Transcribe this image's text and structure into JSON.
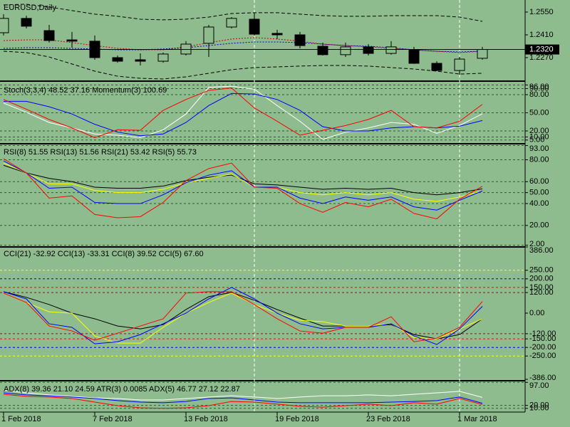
{
  "chart_data": [
    {
      "type": "candlestick",
      "title": "EURUSD,Daily",
      "categories": [
        "1 Feb 2018",
        null,
        null,
        null,
        "7 Feb 2018",
        null,
        null,
        null,
        "13 Feb 2018",
        null,
        null,
        null,
        "19 Feb 2018",
        null,
        null,
        null,
        "23 Feb 2018",
        null,
        null,
        null,
        "1 Mar 2018",
        null
      ],
      "open": [
        1.2423,
        1.2511,
        1.2436,
        1.2379,
        1.2371,
        1.227,
        1.2257,
        1.2248,
        1.2292,
        1.2358,
        1.2458,
        1.2506,
        1.2419,
        1.241,
        1.234,
        1.2288,
        1.2336,
        1.2296,
        1.2318,
        1.2235,
        1.2191,
        1.2266
      ],
      "high": [
        1.2537,
        1.2528,
        1.2471,
        1.2428,
        1.2406,
        1.2283,
        1.2296,
        1.2301,
        1.2371,
        1.2471,
        1.2519,
        1.2546,
        1.2441,
        1.2428,
        1.2362,
        1.2362,
        1.2353,
        1.2371,
        1.2336,
        1.2248,
        1.2274,
        1.2336
      ],
      "low": [
        1.2406,
        1.2449,
        1.2362,
        1.2331,
        1.2257,
        1.2239,
        1.2222,
        1.2239,
        1.2283,
        1.2274,
        1.2449,
        1.2406,
        1.2384,
        1.2327,
        1.2283,
        1.2274,
        1.2283,
        1.2288,
        1.2231,
        1.2187,
        1.2165,
        1.2257
      ],
      "close": [
        1.2511,
        1.2463,
        1.2375,
        1.2371,
        1.227,
        1.2248,
        1.2248,
        1.2292,
        1.2353,
        1.2458,
        1.2511,
        1.2414,
        1.241,
        1.2344,
        1.2288,
        1.2336,
        1.2296,
        1.2336,
        1.2235,
        1.2191,
        1.2261,
        1.232
      ],
      "up_color": "#8fbc8f",
      "down_color": "#000000",
      "wick_color": "#000000",
      "series": [
        {
          "color": "#000000",
          "style": "dashed",
          "values": [
            1.2594,
            1.2598,
            1.2581,
            1.2559,
            1.2537,
            1.2524,
            1.2506,
            1.2502,
            1.2506,
            1.2519,
            1.2541,
            1.2546,
            1.2546,
            1.2537,
            1.2528,
            1.2524,
            1.2524,
            1.2528,
            1.2528,
            1.2528,
            1.2519,
            1.2493
          ]
        },
        {
          "color": "#000000",
          "style": "dashed",
          "values": [
            1.2309,
            1.2301,
            1.2274,
            1.2231,
            1.2187,
            1.2156,
            1.2143,
            1.2139,
            1.2152,
            1.2174,
            1.2196,
            1.2209,
            1.2213,
            1.2218,
            1.2222,
            1.2222,
            1.2218,
            1.2209,
            1.22,
            1.2187,
            1.2169,
            1.2174
          ]
        },
        {
          "color": "#cc0000",
          "style": "dotted",
          "values": [
            1.2375,
            1.2379,
            1.2379,
            1.2362,
            1.2344,
            1.2327,
            1.2318,
            1.2318,
            1.2336,
            1.2362,
            1.2384,
            1.2393,
            1.2384,
            1.2371,
            1.2353,
            1.2344,
            1.2336,
            1.2327,
            1.2318,
            1.2309,
            1.2301,
            1.2309
          ]
        },
        {
          "color": "#0000cc",
          "style": "dotted",
          "values": [
            1.2327,
            1.2331,
            1.2331,
            1.2327,
            1.2323,
            1.2318,
            1.2318,
            1.2323,
            1.2331,
            1.2344,
            1.2358,
            1.2366,
            1.2366,
            1.2362,
            1.2353,
            1.2344,
            1.234,
            1.2331,
            1.2318,
            1.2309,
            1.2305,
            1.2309
          ]
        }
      ],
      "ylim": [
        1.213,
        1.2624
      ],
      "yticks": [
        {
          "value": 1.255,
          "label": "1.2550"
        },
        {
          "value": 1.241,
          "label": "1.2410"
        },
        {
          "value": 1.227,
          "label": "1.2270"
        }
      ],
      "last_price": {
        "value": 1.232,
        "label": "1.2320"
      }
    },
    {
      "type": "line",
      "title": "Stoch(3,3,4) 48.52 37.16 Momentum(3) 100.69",
      "ylim": [
        0,
        100
      ],
      "yticks": [
        {
          "value": 96,
          "label": "96.00"
        },
        {
          "value": 90,
          "label": "90.00"
        },
        {
          "value": 80,
          "label": "80.00"
        },
        {
          "value": 50,
          "label": "50.00"
        },
        {
          "value": 20,
          "label": "20.00"
        },
        {
          "value": 10,
          "label": "10.00"
        },
        {
          "value": 5,
          "label": "5.00"
        }
      ],
      "grid": true,
      "grid_color": "#2a5e2a",
      "series": [
        {
          "color": "#ffffff",
          "values": [
            66,
            51,
            34,
            25,
            15,
            13,
            9,
            22,
            48,
            92,
            94,
            89,
            62,
            36,
            6,
            18,
            25,
            34,
            31,
            16,
            29,
            48.52
          ]
        },
        {
          "color": "#0000ff",
          "values": [
            69,
            69,
            60,
            48,
            31,
            18,
            12,
            15,
            34,
            62,
            82,
            81,
            72,
            54,
            27,
            20,
            20,
            25,
            27,
            25,
            28,
            37.16
          ]
        },
        {
          "color": "#ff0000",
          "values": [
            72,
            56,
            39,
            25,
            9,
            22,
            21,
            54,
            72,
            87,
            91,
            58,
            36,
            13,
            21,
            29,
            39,
            54,
            27,
            25,
            36,
            64
          ]
        }
      ]
    },
    {
      "type": "line",
      "title": "RSI(8) 51.55 RSI(13) 51.56 RSI(21) 53.42 RSI(5) 55.73",
      "ylim": [
        1,
        94
      ],
      "yticks": [
        {
          "value": 93,
          "label": "93.00"
        },
        {
          "value": 80,
          "label": "80.00"
        },
        {
          "value": 60,
          "label": "60.00"
        },
        {
          "value": 50,
          "label": "50.00"
        },
        {
          "value": 40,
          "label": "40.00"
        },
        {
          "value": 20,
          "label": "20.00"
        },
        {
          "value": 2,
          "label": "2.00"
        }
      ],
      "grid": true,
      "grid_color": "#2a5e2a",
      "series": [
        {
          "color": "#000000",
          "values": [
            75,
            68,
            63,
            60,
            55,
            54,
            54,
            56,
            61,
            64,
            66,
            58,
            57,
            55,
            53,
            54,
            53,
            54,
            50,
            48,
            50,
            53.42
          ]
        },
        {
          "color": "#ffff00",
          "values": [
            77,
            68,
            58,
            58,
            52,
            50,
            50,
            53,
            59,
            63,
            67,
            55,
            55,
            50,
            48,
            50,
            48,
            50,
            44,
            42,
            46,
            51.56
          ]
        },
        {
          "color": "#0000ff",
          "values": [
            79,
            68,
            54,
            55,
            41,
            40,
            40,
            48,
            59,
            66,
            70,
            55,
            55,
            45,
            40,
            46,
            43,
            46,
            37,
            34,
            43,
            51.55
          ]
        },
        {
          "color": "#ff0000",
          "values": [
            81,
            68,
            45,
            47,
            30,
            27,
            28,
            41,
            61,
            72,
            77,
            55,
            54,
            40,
            32,
            41,
            37,
            44,
            31,
            26,
            44,
            55.73
          ]
        }
      ]
    },
    {
      "type": "line",
      "title": "CCI(21) -32.92 CCI(13) -33.31 CCI(8) 39.52 CCI(5) 67.60",
      "ylim": [
        -390,
        390
      ],
      "yticks": [
        {
          "value": 386,
          "label": "386.00"
        },
        {
          "value": 250,
          "label": "250.00"
        },
        {
          "value": 200,
          "label": "200.00"
        },
        {
          "value": 150,
          "label": "150.00"
        },
        {
          "value": 120,
          "label": "120.00"
        },
        {
          "value": 0,
          "label": "0.00"
        },
        {
          "value": -120,
          "label": "-120.00"
        },
        {
          "value": -150,
          "label": "-150.00"
        },
        {
          "value": -200,
          "label": "-200.00"
        },
        {
          "value": -250,
          "label": "-250.00"
        },
        {
          "value": -386,
          "label": "-386.00"
        }
      ],
      "grid_colors": [
        null,
        "#ffff00",
        "#0000ff",
        "#ff0000",
        "#7a1f1f",
        null,
        "#7a1f1f",
        "#ff0000",
        "#0000ff",
        "#ffff00",
        null
      ],
      "series": [
        {
          "color": "#000000",
          "values": [
            125,
            92,
            50,
            0,
            -33,
            -75,
            -92,
            -67,
            21,
            96,
            121,
            75,
            21,
            -29,
            -75,
            -75,
            -75,
            -67,
            -125,
            -150,
            -125,
            -32.92
          ]
        },
        {
          "color": "#ffff00",
          "values": [
            117,
            62,
            8,
            0,
            -133,
            -175,
            -175,
            -83,
            0,
            62,
            117,
            50,
            0,
            -42,
            -50,
            -75,
            -75,
            -62,
            -142,
            -150,
            -92,
            -33.31
          ]
        },
        {
          "color": "#0000ff",
          "values": [
            125,
            83,
            -62,
            -83,
            -179,
            -167,
            -125,
            -62,
            0,
            83,
            150,
            83,
            0,
            -62,
            -92,
            -83,
            -83,
            -62,
            -133,
            -183,
            -92,
            39.52
          ]
        },
        {
          "color": "#ff0000",
          "values": [
            117,
            62,
            -75,
            -104,
            -158,
            -117,
            -75,
            -33,
            117,
            125,
            125,
            50,
            -33,
            -104,
            -117,
            -83,
            -83,
            -21,
            -167,
            -146,
            -83,
            67.6
          ]
        }
      ]
    },
    {
      "type": "line",
      "title": "ADX(8) 39.36 21.10 24.59 ATR(3) 0.0085 ADX(5) 46.77 27.12 22.87",
      "ylim": [
        0,
        100
      ],
      "yticks": [
        {
          "value": 97,
          "label": "97.00"
        },
        {
          "value": 20,
          "label": "20.00"
        },
        {
          "value": 10,
          "label": "10.00"
        }
      ],
      "grid": true,
      "grid_color": "#2a5e2a",
      "series": [
        {
          "color": "#ffffff",
          "values": [
            71,
            62,
            55,
            50,
            45,
            43,
            38,
            38,
            43,
            48,
            52,
            48,
            43,
            48,
            52,
            52,
            55,
            52,
            57,
            62,
            67,
            46.77
          ]
        },
        {
          "color": "#0000ff",
          "values": [
            62,
            55,
            52,
            48,
            43,
            36,
            31,
            29,
            33,
            43,
            45,
            38,
            31,
            29,
            29,
            29,
            29,
            31,
            33,
            36,
            48,
            27.12
          ]
        },
        {
          "color": "#ff0000",
          "values": [
            57,
            50,
            48,
            43,
            31,
            19,
            12,
            10,
            12,
            19,
            33,
            31,
            24,
            17,
            14,
            19,
            24,
            19,
            29,
            24,
            43,
            22.87
          ]
        }
      ]
    }
  ]
}
